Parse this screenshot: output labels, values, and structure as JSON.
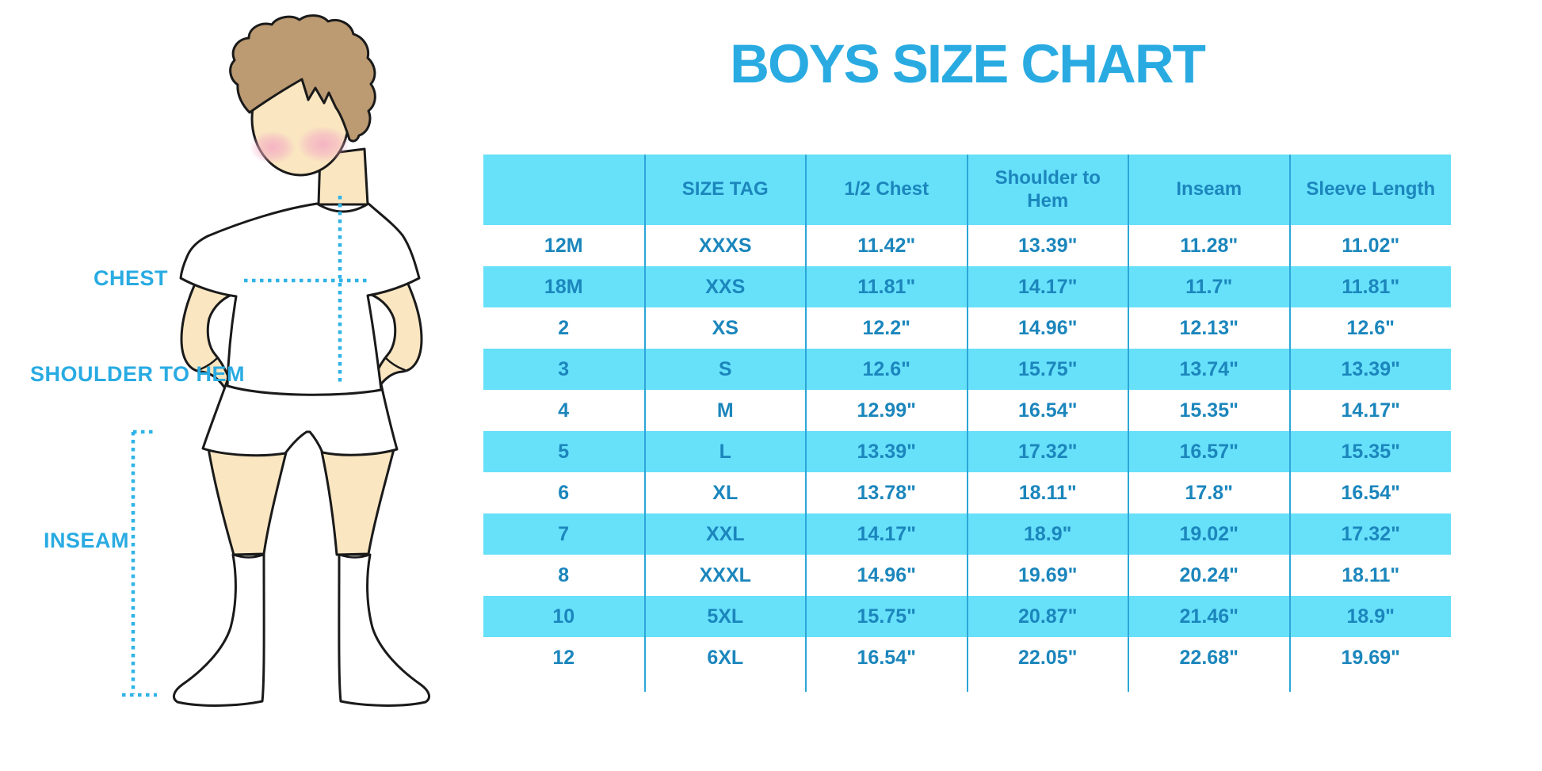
{
  "title": "BOYS SIZE CHART",
  "colors": {
    "accent": "#29ABE2",
    "band": "#67E0FA",
    "table_text": "#1B86BC",
    "separator": "#2BA6D8",
    "skin": "#FAE6C1",
    "hair": "#BC9A72",
    "cheek": "#F4AEC4",
    "outline": "#1A1A1A",
    "dots": "#2FB3E8"
  },
  "figure_labels": {
    "chest": "CHEST",
    "shoulder_to_hem": "SHOULDER TO HEM",
    "inseam": "INSEAM"
  },
  "chart_data": {
    "type": "table",
    "title": "BOYS SIZE CHART",
    "columns": [
      "",
      "SIZE TAG",
      "1/2 Chest",
      "Shoulder to Hem",
      "Inseam",
      "Sleeve Length"
    ],
    "rows": [
      [
        "12M",
        "XXXS",
        "11.42\"",
        "13.39\"",
        "11.28\"",
        "11.02\""
      ],
      [
        "18M",
        "XXS",
        "11.81\"",
        "14.17\"",
        "11.7\"",
        "11.81\""
      ],
      [
        "2",
        "XS",
        "12.2\"",
        "14.96\"",
        "12.13\"",
        "12.6\""
      ],
      [
        "3",
        "S",
        "12.6\"",
        "15.75\"",
        "13.74\"",
        "13.39\""
      ],
      [
        "4",
        "M",
        "12.99\"",
        "16.54\"",
        "15.35\"",
        "14.17\""
      ],
      [
        "5",
        "L",
        "13.39\"",
        "17.32\"",
        "16.57\"",
        "15.35\""
      ],
      [
        "6",
        "XL",
        "13.78\"",
        "18.11\"",
        "17.8\"",
        "16.54\""
      ],
      [
        "7",
        "XXL",
        "14.17\"",
        "18.9\"",
        "19.02\"",
        "17.32\""
      ],
      [
        "8",
        "XXXL",
        "14.96\"",
        "19.69\"",
        "20.24\"",
        "18.11\""
      ],
      [
        "10",
        "5XL",
        "15.75\"",
        "20.87\"",
        "21.46\"",
        "18.9\""
      ],
      [
        "12",
        "6XL",
        "16.54\"",
        "22.05\"",
        "22.68\"",
        "19.69\""
      ]
    ],
    "annotations": [
      "CHEST",
      "SHOULDER TO HEM",
      "INSEAM"
    ],
    "row_banding": "alternating white / light blue, header light blue",
    "legend_position": "none",
    "grid": "vertical column separators only"
  }
}
